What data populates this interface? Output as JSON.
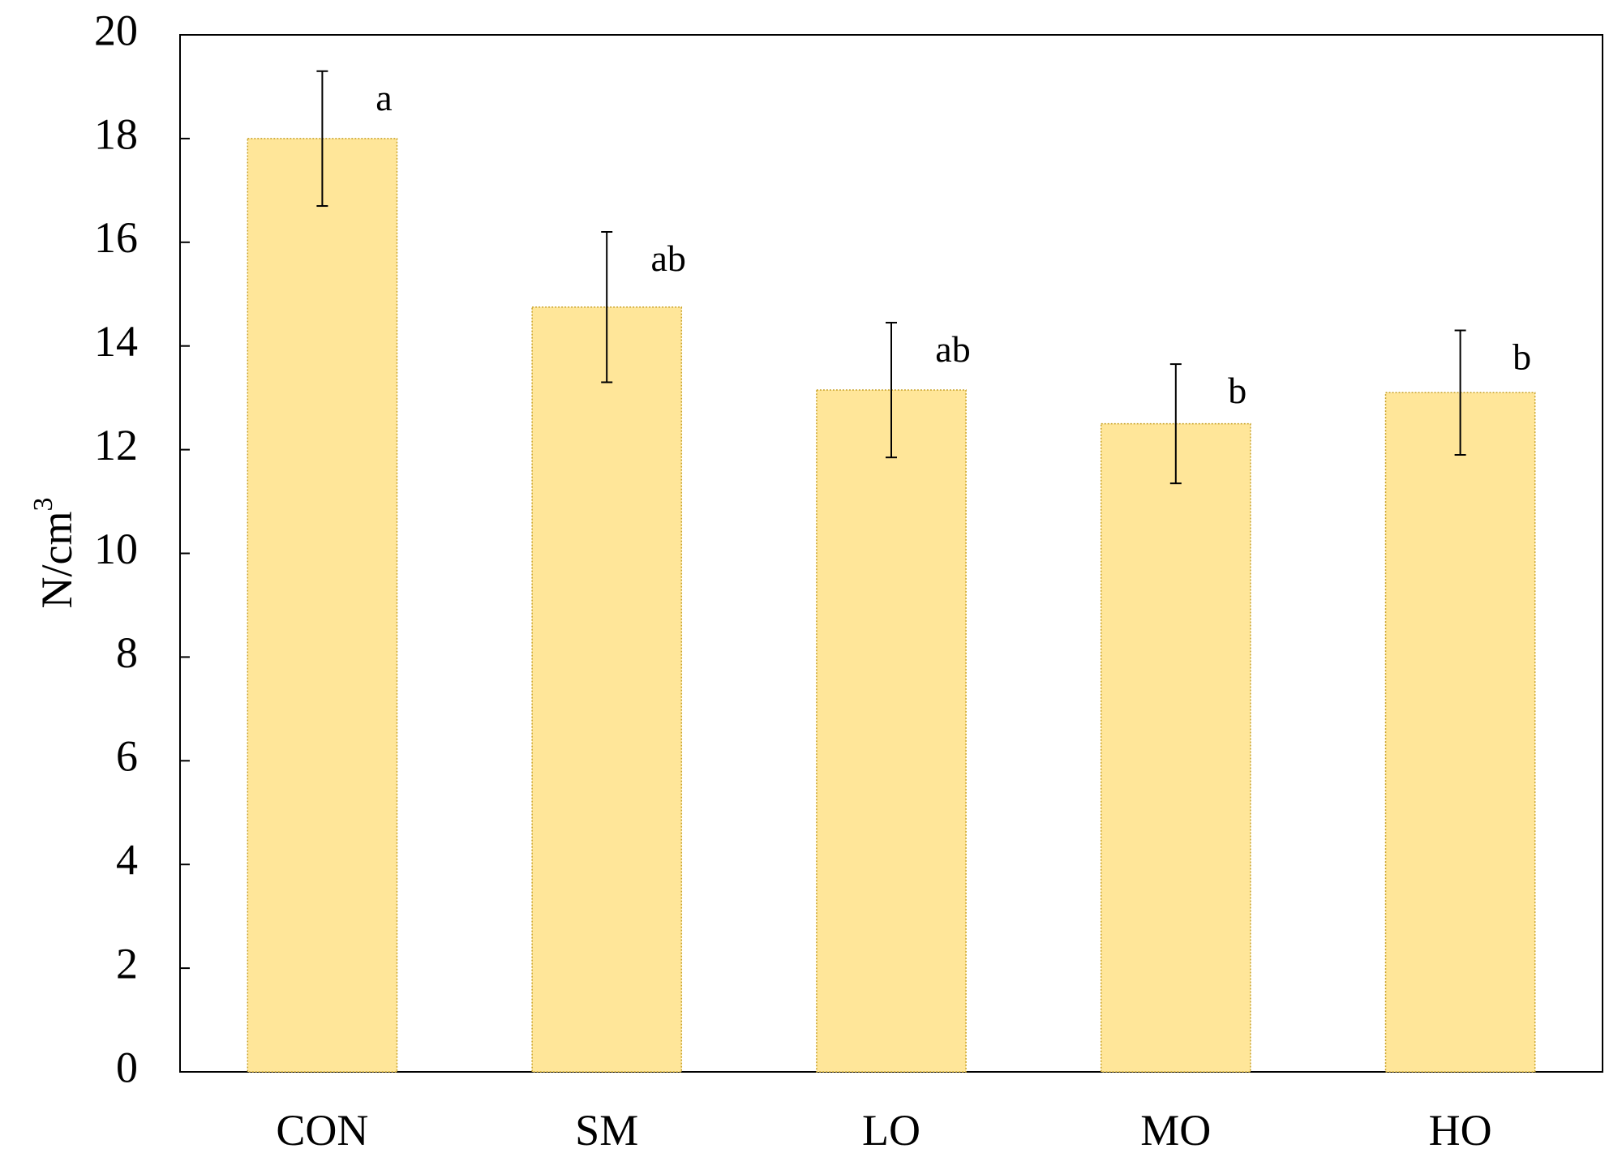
{
  "chart_data": {
    "type": "bar",
    "title": "",
    "xlabel": "",
    "ylabel": "N/cm",
    "ylabel_superscript": "3",
    "categories": [
      "CON",
      "SM",
      "LO",
      "MO",
      "HO"
    ],
    "series": [
      {
        "values": [
          18.0,
          14.75,
          13.15,
          12.5,
          13.1
        ],
        "error": [
          1.3,
          1.45,
          1.3,
          1.15,
          1.2
        ],
        "significance_labels": [
          "a",
          "ab",
          "ab",
          "b",
          "b"
        ]
      }
    ],
    "ylim": [
      0,
      20
    ],
    "yticks": [
      0,
      2,
      4,
      6,
      8,
      10,
      12,
      14,
      16,
      18,
      20
    ],
    "grid": false,
    "legend": "none",
    "colors": {
      "bar_fill": "#ffe699",
      "bar_stroke": "#c9a227",
      "axis": "#000000",
      "error_bar": "#000000"
    }
  }
}
